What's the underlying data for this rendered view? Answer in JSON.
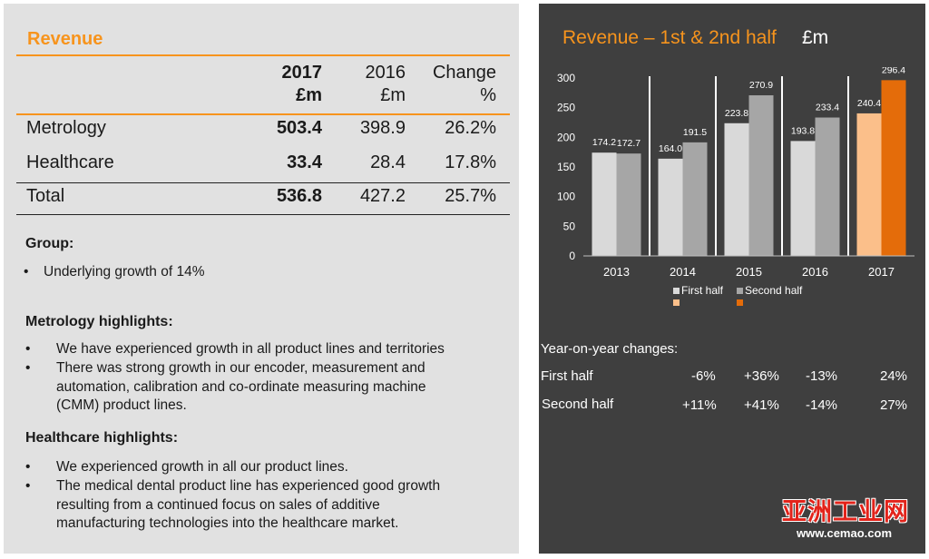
{
  "left": {
    "title": "Revenue",
    "table": {
      "headers": [
        {
          "line1": "2017",
          "line2": "£m"
        },
        {
          "line1": "2016",
          "line2": "£m"
        },
        {
          "line1": "Change",
          "line2": "%"
        }
      ],
      "rows": [
        {
          "label": "Metrology",
          "v2017": "503.4",
          "v2016": "398.9",
          "change": "26.2%"
        },
        {
          "label": "Healthcare",
          "v2017": "33.4",
          "v2016": "28.4",
          "change": "17.8%"
        },
        {
          "label": "Total",
          "v2017": "536.8",
          "v2016": "427.2",
          "change": "25.7%"
        }
      ]
    },
    "group": {
      "heading": "Group:",
      "bullets": [
        "Underlying growth of 14%"
      ]
    },
    "metrology": {
      "heading": "Metrology highlights:",
      "bullets": [
        "We have experienced growth in all product lines and territories",
        [
          "There was strong growth in our encoder, measurement and",
          "automation, calibration and co-ordinate measuring machine",
          "(CMM) product lines."
        ]
      ]
    },
    "healthcare": {
      "heading": "Healthcare highlights:",
      "bullets": [
        "We experienced growth in all our product lines.",
        [
          "The medical dental product line has experienced good growth",
          "resulting from a continued focus on sales of additive",
          "manufacturing technologies into the healthcare market."
        ]
      ]
    },
    "bullet_char": "•"
  },
  "right": {
    "title": "Revenue – 1st & 2nd half",
    "unit": "£m",
    "yoy": {
      "heading": "Year-on-year changes:",
      "rows": [
        {
          "label": "First half",
          "values": [
            "-6%",
            "+36%",
            "-13%",
            "24%"
          ]
        },
        {
          "label": "Second half",
          "values": [
            "+11%",
            "+41%",
            "-14%",
            "27%"
          ]
        }
      ]
    }
  },
  "chart_data": {
    "type": "bar",
    "title": "Revenue – 1st & 2nd half £m",
    "categories": [
      "2013",
      "2014",
      "2015",
      "2016",
      "2017"
    ],
    "series": [
      {
        "name": "First half",
        "values": [
          174.2,
          164.0,
          223.8,
          193.8,
          240.4
        ]
      },
      {
        "name": "Second half",
        "values": [
          172.7,
          191.5,
          270.9,
          233.4,
          296.4
        ]
      }
    ],
    "value_labels": {
      "First half": [
        "174.2",
        "164.0",
        "223.8",
        "193.8",
        "240.4"
      ],
      "Second half": [
        "172.7",
        "191.5",
        "270.9",
        "233.4",
        "296.4"
      ]
    },
    "ylim": [
      0,
      300
    ],
    "yticks": [
      "0",
      "50",
      "100",
      "150",
      "200",
      "250",
      "300"
    ],
    "colors": {
      "first_half": "#d9d9d9",
      "second_half": "#a6a6a6",
      "first_half_highlight": "#fbbf8a",
      "second_half_highlight": "#e46c0a",
      "separator": "#ffffff",
      "text": "#ffffff"
    },
    "highlight_category": "2017",
    "legend": {
      "position": "bottom",
      "items": [
        "First half",
        "Second half"
      ]
    }
  },
  "watermark": {
    "cn": "亚洲工业网",
    "url": "www.cemao.com"
  }
}
